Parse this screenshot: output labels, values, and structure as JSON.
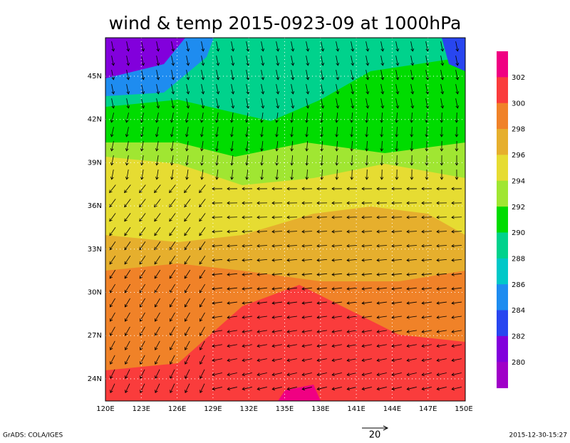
{
  "title": "wind & temp 2015-0923-09 at 1000hPa",
  "lon_ticks": [
    "120E",
    "123E",
    "126E",
    "129E",
    "132E",
    "135E",
    "138E",
    "141E",
    "144E",
    "147E",
    "150E"
  ],
  "lat_ticks": [
    "45N",
    "42N",
    "39N",
    "36N",
    "33N",
    "30N",
    "27N",
    "24N"
  ],
  "colorbar": {
    "labels": [
      302,
      300,
      298,
      296,
      294,
      292,
      290,
      288,
      286,
      284,
      282,
      280
    ]
  },
  "vector_scale": "20",
  "footer_left": "GrADS: COLA/IGES",
  "footer_right": "2015-12-30-15:27"
}
